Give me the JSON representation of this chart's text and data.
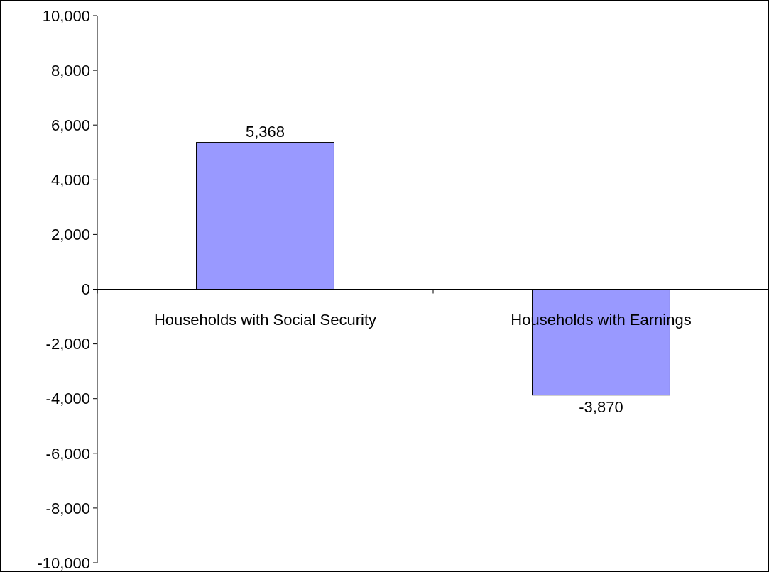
{
  "chart_data": {
    "type": "bar",
    "categories": [
      "Households with Social Security",
      "Households with Earnings"
    ],
    "values": [
      5368,
      -3870
    ],
    "color": "#9999ff",
    "ylim": [
      -10000,
      10000
    ],
    "yticks": [
      {
        "value": -10000,
        "label": "-10,000"
      },
      {
        "value": -8000,
        "label": "-8,000"
      },
      {
        "value": -6000,
        "label": "-6,000"
      },
      {
        "value": -4000,
        "label": "-4,000"
      },
      {
        "value": -2000,
        "label": "-2,000"
      },
      0,
      {
        "value": 2000,
        "label": "2,000"
      },
      {
        "value": 4000,
        "label": "4,000"
      },
      {
        "value": 6000,
        "label": "6,000"
      },
      {
        "value": 8000,
        "label": "8,000"
      },
      {
        "value": 10000,
        "label": "10,000"
      }
    ],
    "value_labels": [
      "5,368",
      "-3,870"
    ],
    "grid": false
  }
}
